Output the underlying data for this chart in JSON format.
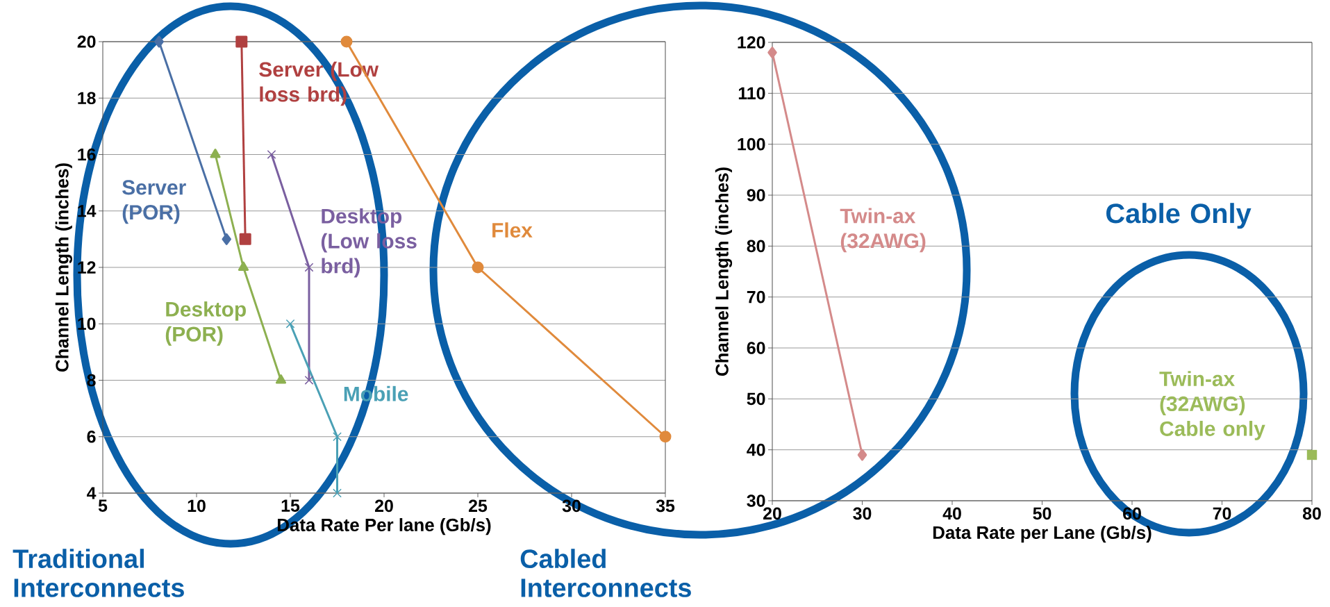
{
  "chart_data": [
    {
      "type": "line",
      "xlabel": "Data Rate Per lane (Gb/s)",
      "ylabel": "Channel Length (inches)",
      "xlim": [
        5,
        35
      ],
      "ylim": [
        4,
        20
      ],
      "xticks": [
        5,
        10,
        15,
        20,
        25,
        30,
        35
      ],
      "yticks": [
        4,
        6,
        8,
        10,
        12,
        14,
        16,
        18,
        20
      ],
      "grid": "y",
      "series": [
        {
          "name": "Server (POR)",
          "color": "#4a6fa5",
          "marker": "diamond",
          "x": [
            8,
            11.6
          ],
          "values": [
            20,
            13
          ]
        },
        {
          "name": "Server (Low loss brd)",
          "color": "#b04040",
          "marker": "square",
          "x": [
            12.4,
            12.6
          ],
          "values": [
            20,
            13
          ]
        },
        {
          "name": "Desktop (POR)",
          "color": "#8db050",
          "marker": "triangle",
          "x": [
            11,
            12.5,
            14.5
          ],
          "values": [
            16,
            12,
            8
          ]
        },
        {
          "name": "Desktop (Low loss brd)",
          "color": "#7a5fa0",
          "marker": "cross",
          "x": [
            14,
            16,
            16
          ],
          "values": [
            16,
            12,
            8
          ]
        },
        {
          "name": "Mobile",
          "color": "#4aa0b5",
          "marker": "cross",
          "x": [
            15,
            17.5,
            17.5
          ],
          "values": [
            10,
            6,
            4
          ]
        },
        {
          "name": "Flex",
          "color": "#e08a3c",
          "marker": "circle",
          "x": [
            18,
            25,
            35
          ],
          "values": [
            20,
            12,
            6
          ]
        }
      ],
      "annotations": [
        "Traditional Interconnects"
      ]
    },
    {
      "type": "line",
      "xlabel": "Data Rate per Lane (Gb/s)",
      "ylabel": "Channel Length (inches)",
      "xlim": [
        20,
        80
      ],
      "ylim": [
        30,
        120
      ],
      "xticks": [
        20,
        30,
        40,
        50,
        60,
        70,
        80
      ],
      "yticks": [
        30,
        40,
        50,
        60,
        70,
        80,
        90,
        100,
        110,
        120
      ],
      "grid": "y",
      "series": [
        {
          "name": "Twin-ax (32AWG)",
          "color": "#d48a8a",
          "marker": "diamond",
          "x": [
            20,
            30
          ],
          "values": [
            118,
            39
          ]
        },
        {
          "name": "Twin-ax (32AWG) Cable only",
          "type": "scatter",
          "color": "#9bbb59",
          "marker": "square",
          "x": [
            80
          ],
          "values": [
            39
          ]
        }
      ],
      "annotations": [
        "Cabled Interconnects",
        "Cable Only"
      ]
    }
  ]
}
